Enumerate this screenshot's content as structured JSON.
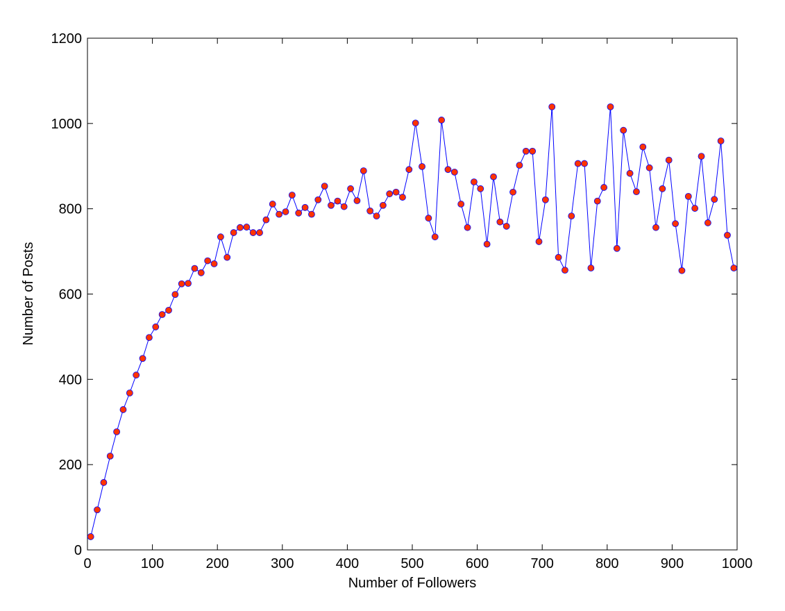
{
  "chart_data": {
    "type": "line",
    "xlabel": "Number of Followers",
    "ylabel": "Number of Posts",
    "x": [
      5,
      15,
      25,
      35,
      45,
      55,
      65,
      75,
      85,
      95,
      105,
      115,
      125,
      135,
      145,
      155,
      165,
      175,
      185,
      195,
      205,
      215,
      225,
      235,
      245,
      255,
      265,
      275,
      285,
      295,
      305,
      315,
      325,
      335,
      345,
      355,
      365,
      375,
      385,
      395,
      405,
      415,
      425,
      435,
      445,
      455,
      465,
      475,
      485,
      495,
      505,
      515,
      525,
      535,
      545,
      555,
      565,
      575,
      585,
      595,
      605,
      615,
      625,
      635,
      645,
      655,
      665,
      675,
      685,
      695,
      705,
      715,
      725,
      735,
      745,
      755,
      765,
      775,
      785,
      795,
      805,
      815,
      825,
      835,
      845,
      855,
      865,
      875,
      885,
      895,
      905,
      915,
      925,
      935,
      945,
      955,
      965,
      975,
      985,
      995
    ],
    "values": [
      31,
      94,
      158,
      220,
      277,
      329,
      368,
      410,
      449,
      498,
      523,
      552,
      562,
      599,
      624,
      625,
      660,
      650,
      678,
      671,
      734,
      686,
      744,
      756,
      757,
      744,
      744,
      774,
      811,
      787,
      793,
      832,
      790,
      803,
      787,
      821,
      853,
      808,
      818,
      805,
      847,
      819,
      889,
      795,
      783,
      808,
      835,
      839,
      827,
      892,
      1001,
      899,
      778,
      734,
      1008,
      892,
      886,
      811,
      756,
      863,
      847,
      717,
      875,
      769,
      759,
      839,
      902,
      935,
      935,
      723,
      821,
      1039,
      686,
      656,
      783,
      906,
      906,
      661,
      818,
      850,
      1039,
      707,
      984,
      883,
      840,
      945,
      896,
      756,
      847,
      914,
      765,
      655,
      829,
      801,
      923,
      767,
      822,
      959,
      738,
      661
    ],
    "color": "#0000ff",
    "marker_color": "#ff3300",
    "xlim": [
      0,
      1000
    ],
    "xticks": [
      0,
      100,
      200,
      300,
      400,
      500,
      600,
      700,
      800,
      900,
      1000
    ],
    "ylim": [
      0,
      1200
    ],
    "yticks": [
      0,
      200,
      400,
      600,
      800,
      1000,
      1200
    ]
  }
}
